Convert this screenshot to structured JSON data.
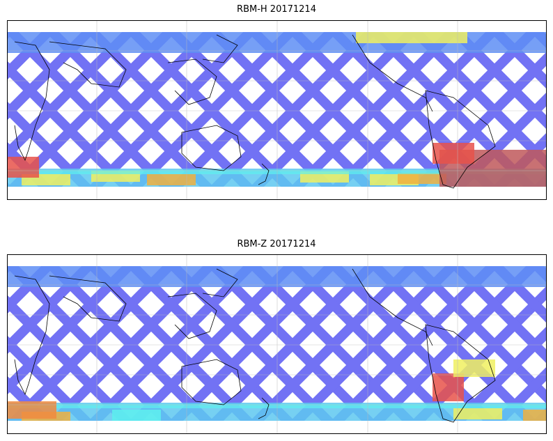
{
  "panels": [
    {
      "title": "RBM-H 20171214",
      "colormap": "jet",
      "colors": {
        "track_base": "#6b6bf4",
        "band_cyan": "#5ef0ee",
        "band_yellow": "#f0f060",
        "hot_red": "#e8524a",
        "dark_red": "#c0585a"
      },
      "hotspots": [
        "south-atlantic/south-america (red)",
        "south-west indian-ocean (red)"
      ]
    },
    {
      "title": "RBM-Z 20171214",
      "colormap": "jet",
      "colors": {
        "track_base": "#6b6bf4",
        "band_cyan": "#5ef0ee",
        "band_yellow": "#f0f060",
        "hot_red": "#e8524a"
      },
      "hotspots": [
        "south-america east coast (red/orange)",
        "south-west indian-ocean (orange)"
      ]
    }
  ],
  "style": {
    "gridlines": true,
    "coastlines": true,
    "background": "#ffffff"
  }
}
